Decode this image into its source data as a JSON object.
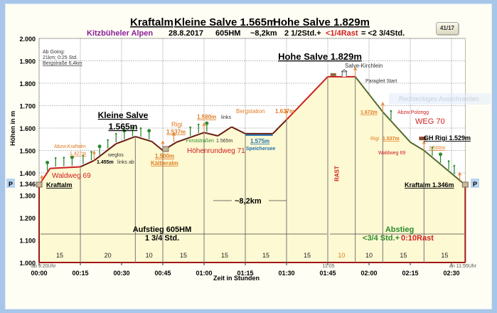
{
  "header": {
    "title_parts": [
      "Kraftalm",
      "Kleine Salve 1.565m",
      "Hohe Salve 1.829m"
    ],
    "region": "Kitzbüheler Alpen",
    "date": "28.8.2017",
    "ascent": "605HM",
    "distance": "~8,2km",
    "walk_time": "2 1/2Std.+",
    "rest_time": "<1/4Rast",
    "total_time": "= <2 3/4Std.",
    "badge": "41/17",
    "ghost_tooltip": "Rechteckiges Ausschneiden"
  },
  "colors": {
    "profile_up": "#cc1f1f",
    "profile_down": "#556b2f",
    "fill": "#fdf9d2",
    "orange": "#e07b22",
    "green": "#2e8b2e",
    "blue": "#1f6fb0",
    "purple": "#8b1f9b",
    "red": "#d02020"
  },
  "chart_data": {
    "type": "area",
    "title": "Kraftalm Kleine Salve 1.565m Hohe Salve 1.829m",
    "xlabel": "Zeit in Stunden",
    "ylabel": "Höhen in m",
    "xlim_minutes": [
      0,
      155
    ],
    "ylim": [
      1000,
      2000
    ],
    "grid": true,
    "y_ticks": [
      "1.000",
      "1.100",
      "1.200",
      "1.300",
      "1.400",
      "1.500",
      "1.600",
      "1.700",
      "1.800",
      "1.900",
      "2.000"
    ],
    "x_ticks": [
      "00:00",
      "00:15",
      "00:30",
      "00:45",
      "01:00",
      "01:15",
      "01:30",
      "01:45",
      "02:00",
      "02:15",
      "02:30"
    ],
    "start_elevation_label": "1.346",
    "profile_minutes_m": [
      [
        0,
        1346
      ],
      [
        4,
        1420
      ],
      [
        15,
        1427
      ],
      [
        20,
        1455
      ],
      [
        28,
        1530
      ],
      [
        35,
        1562
      ],
      [
        41,
        1540
      ],
      [
        45,
        1500
      ],
      [
        50,
        1537
      ],
      [
        60,
        1580
      ],
      [
        65,
        1565
      ],
      [
        70,
        1605
      ],
      [
        75,
        1575
      ],
      [
        85,
        1575
      ],
      [
        90,
        1637
      ],
      [
        105,
        1829
      ],
      [
        115,
        1829
      ],
      [
        125,
        1672
      ],
      [
        135,
        1537
      ],
      [
        140,
        1500
      ],
      [
        155,
        1346
      ]
    ],
    "segments": {
      "boundaries_minutes": [
        0,
        15,
        35,
        45,
        60,
        75,
        90,
        105,
        115,
        125,
        140,
        155
      ],
      "durations": [
        "15",
        "20",
        "10",
        "15",
        "15",
        "15",
        "15",
        "10",
        "10",
        "15",
        "15"
      ]
    },
    "time_annotations": {
      "start": "ab 9:20Uhr",
      "summit": "11:05",
      "end": "an 11:55Uhr"
    },
    "annotations": {
      "going1": "Ab Going:",
      "going2": "21km; 0:25 Std.",
      "going3": "Bergstraße 6,4km",
      "ks1": "Kleine Salve",
      "ks2": "1.565m",
      "hs": "Hohe Salve 1.829m",
      "kirchlein": "Salve-Kirchlein",
      "paragleit": "Paragleit Start",
      "bergstation": "Bergstation",
      "bergstation_m": "1.637m",
      "m1580": "1.580m",
      "links": "links",
      "rigi1": "Rigi",
      "rigi1_m": "1.537m",
      "forst": "Forststraßen",
      "forst_m": "1.565m",
      "hoehenrundweg": "Höhenrundweg 71",
      "speicher_m": "1.575m",
      "speicher": "Speichersee",
      "abzw_kraftalm": "Abzw.Kraftalm",
      "m1427": "1.427m",
      "weglos": "weglos",
      "m1455": "1.455m",
      "linksab": "links ab",
      "m1500a": "1.500m",
      "kaelberalm": "Kälberalm",
      "waldweg1": "Waldweg 69",
      "kraftalm1": "Kraftalm",
      "distance": "~8,2km",
      "rast": "RAST",
      "m1672": "1.672m",
      "polzegg": "Abzw.Polzegg",
      "weg70": "WEG 70",
      "rigi2": "Rigi",
      "rigi2_m": "1.537m",
      "ghrigi": "GH Rigi 1.529m",
      "m1500b": "1.500m",
      "waldweg2": "Waldweg 69",
      "kraftalm2": "Kraftalm 1.346m",
      "aufstieg1": "Aufstieg 605HM",
      "aufstieg2": "1 3/4 Std.",
      "abstieg1": "Abstieg",
      "abstieg2a": "<3/4 Std.+",
      "abstieg2b": "0:10Rast",
      "parking": "P"
    }
  }
}
